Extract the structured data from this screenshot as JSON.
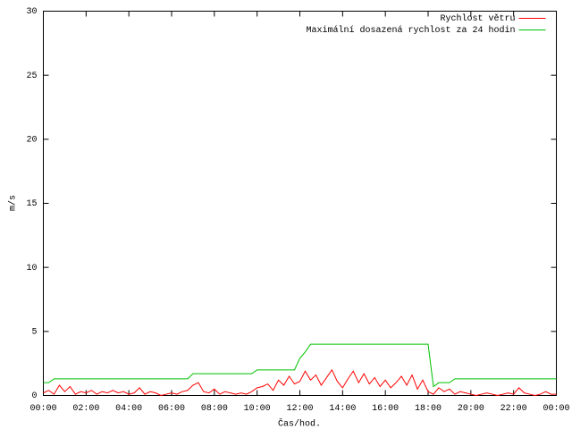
{
  "chart_data": {
    "type": "line",
    "xlabel": "Čas/hod.",
    "ylabel": "m/s",
    "x": [
      0,
      0.25,
      0.5,
      0.75,
      1,
      1.25,
      1.5,
      1.75,
      2,
      2.25,
      2.5,
      2.75,
      3,
      3.25,
      3.5,
      3.75,
      4,
      4.25,
      4.5,
      4.75,
      5,
      5.25,
      5.5,
      5.75,
      6,
      6.25,
      6.5,
      6.75,
      7,
      7.25,
      7.5,
      7.75,
      8,
      8.25,
      8.5,
      8.75,
      9,
      9.25,
      9.5,
      9.75,
      10,
      10.25,
      10.5,
      10.75,
      11,
      11.25,
      11.5,
      11.75,
      12,
      12.25,
      12.5,
      12.75,
      13,
      13.25,
      13.5,
      13.75,
      14,
      14.25,
      14.5,
      14.75,
      15,
      15.25,
      15.5,
      15.75,
      16,
      16.25,
      16.5,
      16.75,
      17,
      17.25,
      17.5,
      17.75,
      18,
      18.25,
      18.5,
      18.75,
      19,
      19.25,
      19.5,
      19.75,
      20,
      20.25,
      20.5,
      20.75,
      21,
      21.25,
      21.5,
      21.75,
      22,
      22.25,
      22.5,
      22.75,
      23,
      23.25,
      23.5,
      23.75,
      24
    ],
    "series": [
      {
        "name": "Rychlost větru",
        "color": "#ff0000",
        "values": [
          0.2,
          0.4,
          0.1,
          0.8,
          0.3,
          0.7,
          0.1,
          0.3,
          0.2,
          0.4,
          0.1,
          0.3,
          0.2,
          0.4,
          0.2,
          0.3,
          0.1,
          0.2,
          0.6,
          0.1,
          0.3,
          0.2,
          0,
          0.1,
          0.2,
          0.1,
          0.3,
          0.4,
          0.8,
          1.0,
          0.3,
          0.2,
          0.5,
          0.1,
          0.3,
          0.2,
          0.1,
          0.2,
          0.1,
          0.3,
          0.6,
          0.7,
          0.9,
          0.4,
          1.2,
          0.8,
          1.5,
          0.9,
          1.1,
          1.9,
          1.2,
          1.6,
          0.8,
          1.4,
          2.0,
          1.1,
          0.6,
          1.3,
          1.9,
          1.0,
          1.7,
          0.9,
          1.4,
          0.7,
          1.2,
          0.6,
          1.0,
          1.5,
          0.8,
          1.6,
          0.5,
          1.2,
          0.3,
          0.1,
          0.6,
          0.3,
          0.5,
          0.1,
          0.3,
          0.2,
          0.1,
          0,
          0.1,
          0.2,
          0.1,
          0,
          0.1,
          0.2,
          0.1,
          0.6,
          0.2,
          0.1,
          0,
          0.1,
          0.3,
          0.1,
          0.1
        ]
      },
      {
        "name": "Maximální dosazená rychlost za 24 hodin",
        "color": "#00c000",
        "values": [
          1.0,
          1.0,
          1.3,
          1.3,
          1.3,
          1.3,
          1.3,
          1.3,
          1.3,
          1.3,
          1.3,
          1.3,
          1.3,
          1.3,
          1.3,
          1.3,
          1.3,
          1.3,
          1.3,
          1.3,
          1.3,
          1.3,
          1.3,
          1.3,
          1.3,
          1.3,
          1.3,
          1.3,
          1.7,
          1.7,
          1.7,
          1.7,
          1.7,
          1.7,
          1.7,
          1.7,
          1.7,
          1.7,
          1.7,
          1.7,
          2.0,
          2.0,
          2.0,
          2.0,
          2.0,
          2.0,
          2.0,
          2.0,
          2.9,
          3.4,
          4.0,
          4.0,
          4.0,
          4.0,
          4.0,
          4.0,
          4.0,
          4.0,
          4.0,
          4.0,
          4.0,
          4.0,
          4.0,
          4.0,
          4.0,
          4.0,
          4.0,
          4.0,
          4.0,
          4.0,
          4.0,
          4.0,
          4.0,
          0.7,
          1.0,
          1.0,
          1.0,
          1.3,
          1.3,
          1.3,
          1.3,
          1.3,
          1.3,
          1.3,
          1.3,
          1.3,
          1.3,
          1.3,
          1.3,
          1.3,
          1.3,
          1.3,
          1.3,
          1.3,
          1.3,
          1.3,
          1.3
        ]
      }
    ],
    "xlim": [
      0,
      24
    ],
    "xticks": [
      {
        "value": 0,
        "label": "00:00"
      },
      {
        "value": 2,
        "label": "02:00"
      },
      {
        "value": 4,
        "label": "04:00"
      },
      {
        "value": 6,
        "label": "06:00"
      },
      {
        "value": 8,
        "label": "08:00"
      },
      {
        "value": 10,
        "label": "10:00"
      },
      {
        "value": 12,
        "label": "12:00"
      },
      {
        "value": 14,
        "label": "14:00"
      },
      {
        "value": 16,
        "label": "16:00"
      },
      {
        "value": 18,
        "label": "18:00"
      },
      {
        "value": 20,
        "label": "20:00"
      },
      {
        "value": 22,
        "label": "22:00"
      },
      {
        "value": 24,
        "label": "00:00"
      }
    ],
    "ylim": [
      0,
      30
    ],
    "yticks": [
      0,
      5,
      10,
      15,
      20,
      25,
      30
    ],
    "legend": "top-right",
    "grid": false
  }
}
